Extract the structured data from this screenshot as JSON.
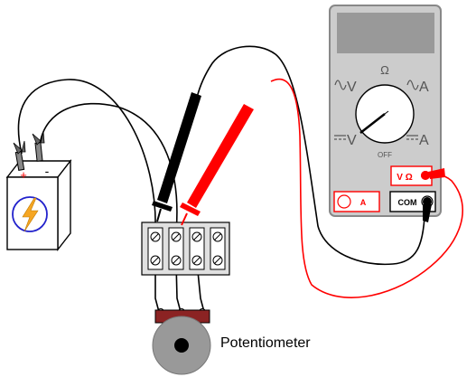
{
  "labels": {
    "potentiometer": "Potentiometer",
    "battery_plus": "+",
    "battery_minus": "-"
  },
  "meter": {
    "dial_ohm": "Ω",
    "dial_v_ac": "V",
    "dial_a_ac": "A",
    "dial_v_dc": "V",
    "dial_a_dc": "A",
    "dial_off": "OFF",
    "jack_voltohm": "V Ω",
    "jack_amp": "A",
    "jack_com": "COM"
  },
  "colors": {
    "red_lead": "#ff0000",
    "black_lead": "#000000",
    "battery_bolt": "#f5a623",
    "battery_circle": "#2222cc",
    "pot_body": "#8b2323",
    "meter_body": "#cccccc",
    "meter_display": "#999999"
  }
}
